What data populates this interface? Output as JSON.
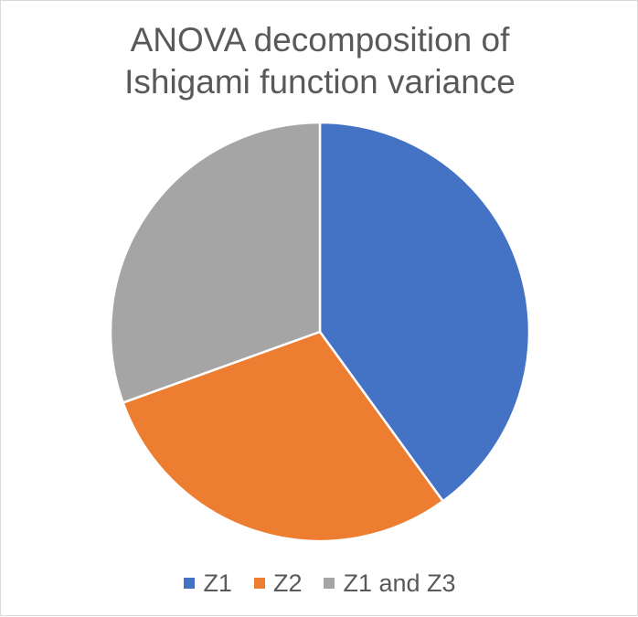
{
  "chart_data": {
    "type": "pie",
    "title_lines": [
      "ANOVA decomposition of",
      "Ishigami function variance"
    ],
    "categories": [
      "Z1",
      "Z2",
      "Z1 and Z3"
    ],
    "values": [
      40.0,
      29.5,
      30.5
    ],
    "colors": [
      "#4472c4",
      "#ed7d31",
      "#a5a5a5"
    ],
    "start_angle_deg": 0,
    "direction": "clockwise",
    "legend_position": "bottom",
    "data_labels": false
  }
}
